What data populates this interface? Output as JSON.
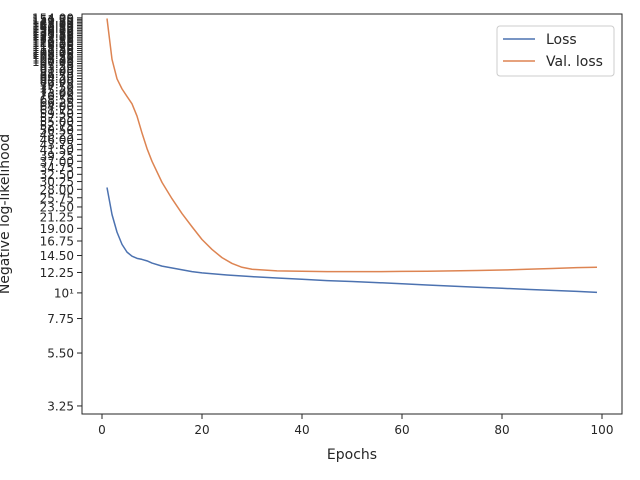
{
  "chart_data": {
    "type": "line",
    "xlabel": "Epochs",
    "ylabel": "Negative log-likelihood",
    "xlim": [
      -4,
      104
    ],
    "ylim": [
      3.0,
      160
    ],
    "yscale": "log",
    "grid": false,
    "legend": "top-right",
    "xticks": [
      0,
      20,
      40,
      60,
      80,
      100
    ],
    "xtick_labels": [
      "0",
      "20",
      "40",
      "60",
      "80",
      "100"
    ],
    "yticks": [
      3.25,
      5.5,
      7.75,
      10,
      12.25,
      14.5,
      16.75,
      19.0,
      21.25,
      23.5,
      25.75,
      28.0,
      30.25,
      32.5,
      34.75,
      37.0,
      39.25,
      41.5,
      43.75,
      46.0,
      48.25,
      50.5,
      52.75,
      55.0,
      57.25,
      59.5,
      61.75,
      64.0,
      66.25,
      68.5,
      70.75,
      73.0,
      75.25,
      77.5,
      79.75,
      82.0,
      84.25,
      86.5,
      88.75,
      91.0,
      93.25,
      95.5,
      97.75,
      100.0,
      102.25,
      104.5,
      106.75,
      109.0,
      111.25,
      113.5,
      115.75,
      118.0,
      120.25,
      122.5,
      124.75,
      127.0,
      129.25,
      131.5,
      133.75,
      136.0,
      138.25,
      140.5,
      142.75,
      145.0,
      147.25,
      149.5,
      151.75,
      154.0
    ],
    "ytick_labels": [
      "3.25",
      "5.50",
      "7.75",
      "10¹",
      "12.25",
      "14.50",
      "16.75",
      "19.00",
      "21.25",
      "23.50",
      "25.75",
      "28.00",
      "30.25",
      "32.50",
      "34.75",
      "37.00",
      "39.25",
      "41.50",
      "43.75",
      "46.00",
      "48.25",
      "50.50",
      "52.75",
      "55.00",
      "57.25",
      "59.50",
      "61.75",
      "64.00",
      "66.25",
      "68.50",
      "70.75",
      "73.00",
      "75.25",
      "77.50",
      "79.75",
      "82.00",
      "84.25",
      "86.50",
      "88.75",
      "91.00",
      "93.25",
      "95.50",
      "97.75",
      "100.00",
      "102.25",
      "104.50",
      "106.75",
      "109.00",
      "111.25",
      "113.50",
      "115.75",
      "118.00",
      "120.25",
      "122.50",
      "124.75",
      "127.00",
      "129.25",
      "131.50",
      "133.75",
      "136.00",
      "138.25",
      "140.50",
      "142.75",
      "145.00",
      "147.25",
      "149.50",
      "151.75",
      "154.00"
    ],
    "series": [
      {
        "name": "Loss",
        "color": "#4c72b0",
        "x": [
          1,
          2,
          3,
          4,
          5,
          6,
          7,
          8,
          9,
          10,
          12,
          15,
          18,
          20,
          25,
          30,
          35,
          40,
          45,
          50,
          55,
          60,
          65,
          70,
          75,
          80,
          85,
          90,
          95,
          99
        ],
        "y": [
          28.5,
          21.8,
          18.3,
          16.2,
          15.0,
          14.4,
          14.1,
          13.95,
          13.75,
          13.45,
          13.05,
          12.7,
          12.35,
          12.2,
          11.95,
          11.75,
          11.6,
          11.45,
          11.3,
          11.2,
          11.08,
          10.95,
          10.82,
          10.7,
          10.58,
          10.47,
          10.35,
          10.25,
          10.15,
          10.05
        ]
      },
      {
        "name": "Val. loss",
        "color": "#dd8452",
        "x": [
          1,
          2,
          3,
          4,
          5,
          6,
          7,
          8,
          9,
          10,
          12,
          14,
          16,
          18,
          20,
          22,
          24,
          26,
          28,
          30,
          35,
          40,
          45,
          50,
          55,
          60,
          65,
          70,
          75,
          80,
          85,
          90,
          95,
          99
        ],
        "y": [
          153.0,
          102.0,
          84.0,
          76.0,
          70.5,
          65.5,
          58.0,
          49.0,
          42.0,
          37.0,
          30.0,
          25.5,
          22.0,
          19.3,
          17.0,
          15.4,
          14.2,
          13.4,
          12.9,
          12.65,
          12.45,
          12.4,
          12.35,
          12.35,
          12.35,
          12.38,
          12.4,
          12.45,
          12.5,
          12.55,
          12.65,
          12.75,
          12.85,
          12.9
        ]
      }
    ]
  }
}
